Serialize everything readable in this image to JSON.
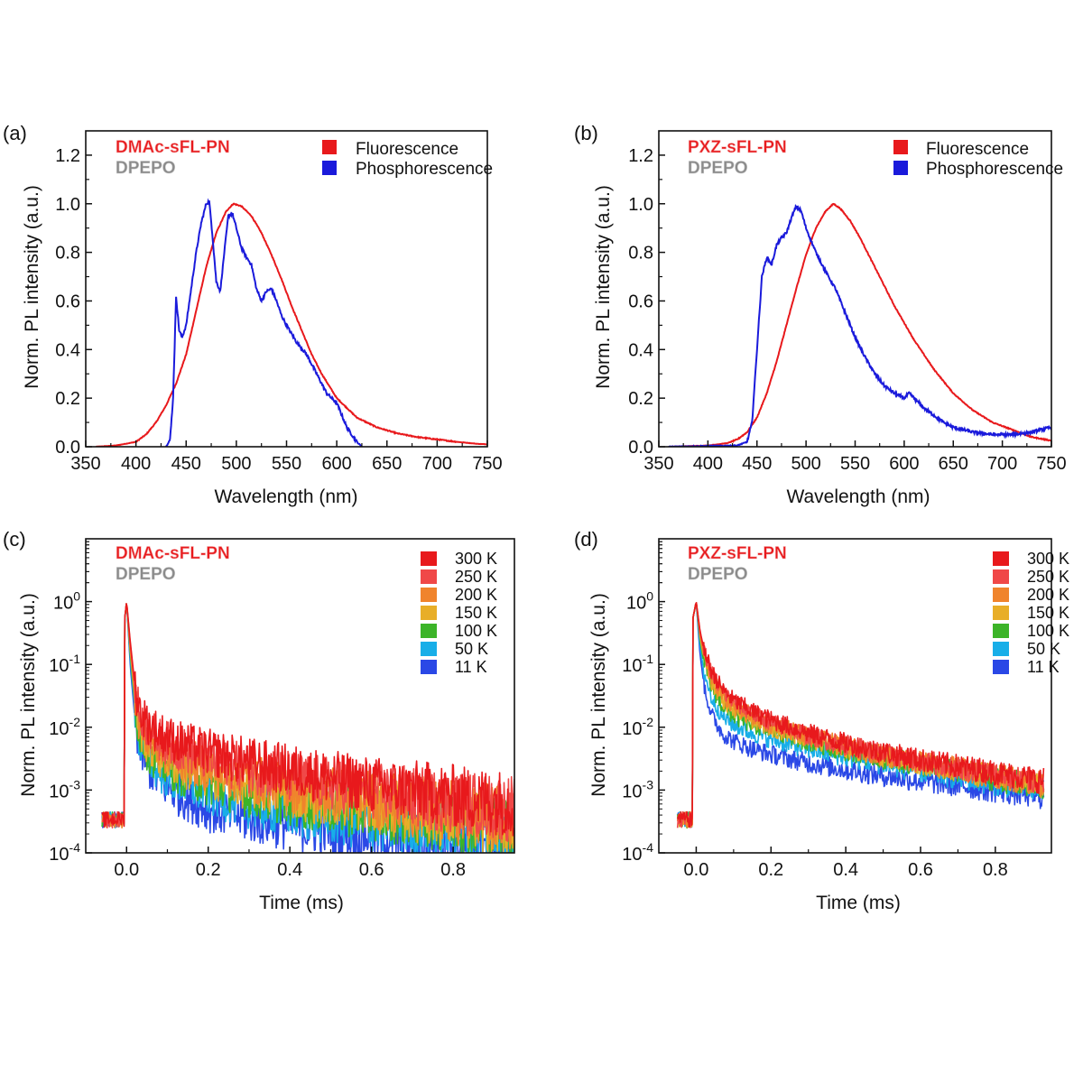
{
  "chart_data": [
    {
      "panel": "(a)",
      "type": "line",
      "xlabel": "Wavelength (nm)",
      "ylabel": "Norm. PL intensity (a.u.)",
      "xlim": [
        350,
        750
      ],
      "ylim": [
        0,
        1.3
      ],
      "xticks": [
        "350",
        "400",
        "450",
        "500",
        "550",
        "600",
        "650",
        "700",
        "750"
      ],
      "yticks": [
        "0.0",
        "0.2",
        "0.4",
        "0.6",
        "0.8",
        "1.0",
        "1.2"
      ],
      "compound": "DMAc-sFL-PN",
      "host": "DPEPO",
      "legend": [
        "Fluorescence",
        "Phosphorescence"
      ],
      "series": [
        {
          "name": "Fluorescence",
          "color": "#e8191c",
          "x": [
            360,
            380,
            400,
            410,
            420,
            430,
            440,
            450,
            460,
            470,
            480,
            490,
            497,
            505,
            515,
            525,
            535,
            545,
            555,
            565,
            575,
            585,
            600,
            620,
            640,
            660,
            680,
            700,
            720,
            740,
            750
          ],
          "y": [
            0,
            0.005,
            0.02,
            0.05,
            0.1,
            0.17,
            0.26,
            0.38,
            0.56,
            0.74,
            0.88,
            0.97,
            1.0,
            0.99,
            0.95,
            0.88,
            0.79,
            0.69,
            0.58,
            0.48,
            0.38,
            0.3,
            0.2,
            0.12,
            0.08,
            0.055,
            0.04,
            0.03,
            0.02,
            0.012,
            0.01
          ]
        },
        {
          "name": "Phosphorescence",
          "color": "#1a1adb",
          "x": [
            430,
            434,
            437,
            440,
            443,
            446,
            450,
            455,
            460,
            465,
            470,
            473,
            476,
            480,
            484,
            488,
            492,
            496,
            500,
            505,
            510,
            515,
            520,
            525,
            530,
            535,
            540,
            545,
            550,
            560,
            570,
            580,
            590,
            600,
            610,
            620,
            625
          ],
          "y": [
            0,
            0.03,
            0.2,
            0.62,
            0.48,
            0.45,
            0.5,
            0.65,
            0.8,
            0.92,
            1.0,
            1.01,
            0.88,
            0.68,
            0.64,
            0.8,
            0.95,
            0.96,
            0.9,
            0.82,
            0.78,
            0.75,
            0.65,
            0.6,
            0.64,
            0.65,
            0.6,
            0.54,
            0.5,
            0.43,
            0.38,
            0.3,
            0.22,
            0.18,
            0.08,
            0.02,
            0
          ]
        }
      ]
    },
    {
      "panel": "(b)",
      "type": "line",
      "xlabel": "Wavelength (nm)",
      "ylabel": "Norm. PL intensity (a.u.)",
      "xlim": [
        350,
        750
      ],
      "ylim": [
        0,
        1.3
      ],
      "xticks": [
        "350",
        "400",
        "450",
        "500",
        "550",
        "600",
        "650",
        "700",
        "750"
      ],
      "yticks": [
        "0.0",
        "0.2",
        "0.4",
        "0.6",
        "0.8",
        "1.0",
        "1.2"
      ],
      "compound": "PXZ-sFL-PN",
      "host": "DPEPO",
      "legend": [
        "Fluorescence",
        "Phosphorescence"
      ],
      "series": [
        {
          "name": "Fluorescence",
          "color": "#e8191c",
          "x": [
            360,
            400,
            420,
            430,
            440,
            450,
            460,
            470,
            480,
            490,
            500,
            510,
            520,
            528,
            535,
            545,
            555,
            565,
            575,
            590,
            610,
            630,
            650,
            670,
            690,
            710,
            730,
            750
          ],
          "y": [
            0,
            0.005,
            0.015,
            0.03,
            0.06,
            0.12,
            0.22,
            0.35,
            0.5,
            0.65,
            0.79,
            0.9,
            0.97,
            1.0,
            0.98,
            0.93,
            0.86,
            0.78,
            0.7,
            0.58,
            0.44,
            0.32,
            0.22,
            0.15,
            0.1,
            0.07,
            0.04,
            0.025
          ]
        },
        {
          "name": "Phosphorescence",
          "color": "#1a1adb",
          "x": [
            360,
            430,
            440,
            445,
            450,
            455,
            460,
            465,
            470,
            475,
            480,
            485,
            490,
            495,
            500,
            510,
            520,
            530,
            540,
            550,
            560,
            570,
            580,
            590,
            600,
            605,
            610,
            620,
            630,
            640,
            650,
            670,
            690,
            710,
            730,
            750
          ],
          "y": [
            0,
            0.005,
            0.02,
            0.1,
            0.4,
            0.7,
            0.78,
            0.75,
            0.83,
            0.86,
            0.88,
            0.94,
            0.99,
            0.97,
            0.9,
            0.8,
            0.72,
            0.65,
            0.55,
            0.45,
            0.37,
            0.3,
            0.25,
            0.22,
            0.2,
            0.22,
            0.2,
            0.16,
            0.13,
            0.1,
            0.08,
            0.06,
            0.05,
            0.05,
            0.06,
            0.08
          ]
        }
      ]
    },
    {
      "panel": "(c)",
      "type": "line",
      "yscale": "log",
      "xlabel": "Time (ms)",
      "ylabel": "Norm. PL intensity (a.u.)",
      "xlim": [
        -0.1,
        0.95
      ],
      "ylim": [
        0.0001,
        10
      ],
      "xticks": [
        "0.0",
        "0.2",
        "0.4",
        "0.6",
        "0.8"
      ],
      "ytick_bases": [
        "10",
        "10",
        "10",
        "10",
        "10"
      ],
      "ytick_exps": [
        "0",
        "-1",
        "-2",
        "-3",
        "-4"
      ],
      "compound": "DMAc-sFL-PN",
      "host": "DPEPO",
      "legend": [
        "300 K",
        "250 K",
        "200 K",
        "150 K",
        "100 K",
        "50 K",
        "11 K"
      ],
      "colors": [
        "#e8191c",
        "#f04848",
        "#f0842c",
        "#e8ae28",
        "#3cb428",
        "#18aee8",
        "#2a48e6"
      ],
      "t": [
        -0.005,
        0,
        0.01,
        0.02,
        0.03,
        0.05,
        0.08,
        0.12,
        0.2,
        0.3,
        0.45,
        0.6,
        0.75,
        0.95
      ],
      "series": [
        {
          "name": "300 K",
          "values": [
            0.5,
            1,
            0.2,
            0.05,
            0.02,
            0.012,
            0.008,
            0.006,
            0.004,
            0.0028,
            0.0018,
            0.0012,
            0.0009,
            0.0006
          ]
        },
        {
          "name": "250 K",
          "values": [
            0.5,
            1,
            0.18,
            0.045,
            0.018,
            0.01,
            0.0065,
            0.0048,
            0.0032,
            0.0022,
            0.0014,
            0.001,
            0.0007,
            0.0005
          ]
        },
        {
          "name": "200 K",
          "values": [
            0.5,
            1,
            0.15,
            0.035,
            0.014,
            0.007,
            0.0045,
            0.0033,
            0.0022,
            0.0015,
            0.001,
            0.0007,
            0.0005,
            0.00035
          ]
        },
        {
          "name": "150 K",
          "values": [
            0.5,
            1,
            0.14,
            0.03,
            0.011,
            0.0055,
            0.0035,
            0.0026,
            0.0017,
            0.0012,
            0.0008,
            0.0006,
            0.0004,
            0.0003
          ]
        },
        {
          "name": "100 K",
          "values": [
            0.5,
            1,
            0.12,
            0.025,
            0.009,
            0.0045,
            0.0028,
            0.002,
            0.0013,
            0.0009,
            0.0006,
            0.00045,
            0.00035,
            0.00025
          ]
        },
        {
          "name": "50 K",
          "values": [
            0.5,
            1,
            0.1,
            0.02,
            0.007,
            0.0035,
            0.002,
            0.0014,
            0.0009,
            0.0006,
            0.0004,
            0.0003,
            0.00025,
            0.0002
          ]
        },
        {
          "name": "11 K",
          "values": [
            0.5,
            1,
            0.08,
            0.015,
            0.005,
            0.0025,
            0.0014,
            0.0009,
            0.0005,
            0.00035,
            0.00025,
            0.0002,
            0.00015,
            0.00012
          ]
        }
      ]
    },
    {
      "panel": "(d)",
      "type": "line",
      "yscale": "log",
      "xlabel": "Time (ms)",
      "ylabel": "Norm. PL intensity (a.u.)",
      "xlim": [
        -0.1,
        0.95
      ],
      "ylim": [
        0.0001,
        10
      ],
      "xticks": [
        "0.0",
        "0.2",
        "0.4",
        "0.6",
        "0.8"
      ],
      "ytick_bases": [
        "10",
        "10",
        "10",
        "10",
        "10"
      ],
      "ytick_exps": [
        "0",
        "-1",
        "-2",
        "-3",
        "-4"
      ],
      "compound": "PXZ-sFL-PN",
      "host": "DPEPO",
      "legend": [
        "300 K",
        "250 K",
        "200 K",
        "150 K",
        "100 K",
        "50 K",
        "11 K"
      ],
      "colors": [
        "#e8191c",
        "#f04848",
        "#f0842c",
        "#e8ae28",
        "#3cb428",
        "#18aee8",
        "#2a48e6"
      ],
      "t": [
        -0.01,
        0,
        0.01,
        0.02,
        0.04,
        0.07,
        0.1,
        0.15,
        0.2,
        0.3,
        0.4,
        0.5,
        0.6,
        0.7,
        0.8,
        0.93
      ],
      "series": [
        {
          "name": "300 K",
          "values": [
            0.5,
            1,
            0.35,
            0.18,
            0.08,
            0.04,
            0.027,
            0.018,
            0.013,
            0.008,
            0.0055,
            0.004,
            0.003,
            0.0024,
            0.0019,
            0.0014
          ]
        },
        {
          "name": "250 K",
          "values": [
            0.5,
            1,
            0.33,
            0.17,
            0.075,
            0.037,
            0.025,
            0.017,
            0.012,
            0.0075,
            0.0052,
            0.0038,
            0.0029,
            0.0023,
            0.0018,
            0.0013
          ]
        },
        {
          "name": "200 K",
          "values": [
            0.5,
            1,
            0.3,
            0.15,
            0.065,
            0.032,
            0.022,
            0.015,
            0.011,
            0.007,
            0.005,
            0.0036,
            0.0028,
            0.0022,
            0.0017,
            0.0012
          ]
        },
        {
          "name": "150 K",
          "values": [
            0.5,
            1,
            0.28,
            0.13,
            0.055,
            0.028,
            0.019,
            0.013,
            0.01,
            0.0066,
            0.0047,
            0.0035,
            0.0027,
            0.0021,
            0.0016,
            0.0012
          ]
        },
        {
          "name": "100 K",
          "values": [
            0.5,
            1,
            0.25,
            0.11,
            0.045,
            0.022,
            0.015,
            0.011,
            0.009,
            0.006,
            0.0043,
            0.0032,
            0.0025,
            0.002,
            0.0015,
            0.0011
          ]
        },
        {
          "name": "50 K",
          "values": [
            0.5,
            1,
            0.2,
            0.08,
            0.03,
            0.015,
            0.011,
            0.008,
            0.0065,
            0.0045,
            0.0034,
            0.0026,
            0.002,
            0.0016,
            0.0013,
            0.001
          ]
        },
        {
          "name": "11 K",
          "values": [
            0.5,
            1,
            0.15,
            0.05,
            0.016,
            0.008,
            0.006,
            0.0045,
            0.0037,
            0.0027,
            0.0021,
            0.0017,
            0.0014,
            0.0012,
            0.001,
            0.0008
          ]
        }
      ]
    }
  ]
}
